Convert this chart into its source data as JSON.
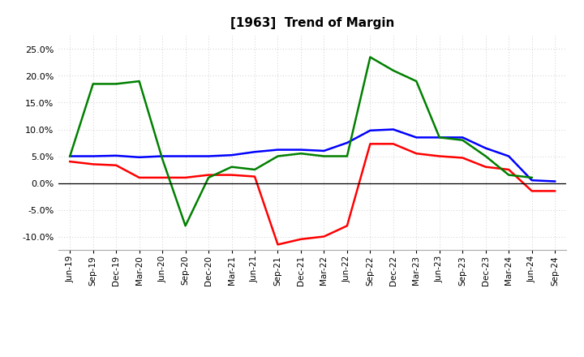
{
  "title": "[1963]  Trend of Margin",
  "x_labels": [
    "Jun-19",
    "Sep-19",
    "Dec-19",
    "Mar-20",
    "Jun-20",
    "Sep-20",
    "Dec-20",
    "Mar-21",
    "Jun-21",
    "Sep-21",
    "Dec-21",
    "Mar-22",
    "Jun-22",
    "Sep-22",
    "Dec-22",
    "Mar-23",
    "Jun-23",
    "Sep-23",
    "Dec-23",
    "Mar-24",
    "Jun-24",
    "Sep-24"
  ],
  "ordinary_income": [
    5.0,
    5.0,
    5.1,
    4.8,
    5.0,
    5.0,
    5.0,
    5.2,
    5.8,
    6.2,
    6.2,
    6.0,
    7.5,
    9.8,
    10.0,
    8.5,
    8.5,
    8.5,
    6.5,
    5.0,
    0.5,
    0.3
  ],
  "net_income": [
    4.0,
    3.5,
    3.3,
    1.0,
    1.0,
    1.0,
    1.5,
    1.5,
    1.2,
    -11.5,
    -10.5,
    -10.0,
    -8.0,
    7.3,
    7.3,
    5.5,
    5.0,
    4.7,
    3.0,
    2.5,
    -1.5,
    -1.5
  ],
  "operating_cf": [
    5.0,
    18.5,
    18.5,
    19.0,
    4.5,
    -8.0,
    1.0,
    3.0,
    2.5,
    5.0,
    5.5,
    5.0,
    5.0,
    23.5,
    21.0,
    19.0,
    8.5,
    8.0,
    5.0,
    1.5,
    1.0,
    null
  ],
  "ordinary_color": "#0000ff",
  "net_color": "#ff0000",
  "cf_color": "#008000",
  "ylim": [
    -12.5,
    27.5
  ],
  "yticks": [
    -10.0,
    -5.0,
    0.0,
    5.0,
    10.0,
    15.0,
    20.0,
    25.0
  ],
  "background_color": "#ffffff",
  "grid_color": "#bbbbbb",
  "title_fontsize": 11
}
